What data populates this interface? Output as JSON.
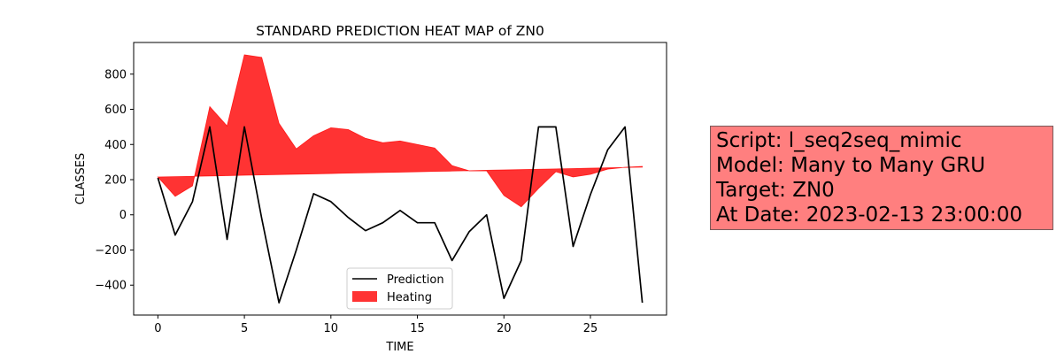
{
  "chart_data": {
    "type": "line",
    "title": "STANDARD PREDICTION HEAT MAP of ZN0",
    "xlabel": "TIME",
    "ylabel": "CLASSES",
    "xlim": [
      -1.4,
      29.4
    ],
    "ylim": [
      -570,
      980
    ],
    "xticks": [
      0,
      5,
      10,
      15,
      20,
      25
    ],
    "yticks": [
      -400,
      -200,
      0,
      200,
      400,
      600,
      800
    ],
    "grid": false,
    "legend_position": "lower-center",
    "x": [
      0,
      1,
      2,
      3,
      4,
      5,
      6,
      7,
      8,
      9,
      10,
      11,
      12,
      13,
      14,
      15,
      16,
      17,
      18,
      19,
      20,
      21,
      22,
      23,
      24,
      25,
      26,
      27,
      28
    ],
    "series": [
      {
        "name": "Prediction",
        "kind": "line",
        "color": "#000000",
        "values": [
          210,
          -115,
          75,
          500,
          -140,
          500,
          -20,
          -500,
          -200,
          120,
          75,
          -15,
          -90,
          -45,
          25,
          -45,
          -45,
          -260,
          -95,
          0,
          -475,
          -260,
          500,
          500,
          -180,
          115,
          370,
          500,
          -500
        ]
      },
      {
        "name": "Heating",
        "kind": "fill_between",
        "color": "#ff0000",
        "opacity": 0.8,
        "values": [
          215,
          105,
          165,
          615,
          505,
          910,
          895,
          520,
          375,
          450,
          495,
          485,
          435,
          410,
          420,
          400,
          380,
          280,
          250,
          250,
          110,
          45,
          150,
          245,
          215,
          230,
          260,
          270,
          275
        ],
        "baseline": [
          215,
          217,
          219,
          221,
          223,
          225,
          227,
          229,
          231,
          233,
          235,
          237,
          239,
          241,
          243,
          245,
          247,
          249,
          251,
          253,
          255,
          257,
          259,
          261,
          263,
          265,
          267,
          269,
          271
        ]
      }
    ]
  },
  "info_box": {
    "background": "#ff7f7f",
    "lines": [
      "Script: l_seq2seq_mimic",
      "Model: Many to Many GRU",
      "Target: ZN0",
      "At Date: 2023-02-13 23:00:00"
    ]
  }
}
